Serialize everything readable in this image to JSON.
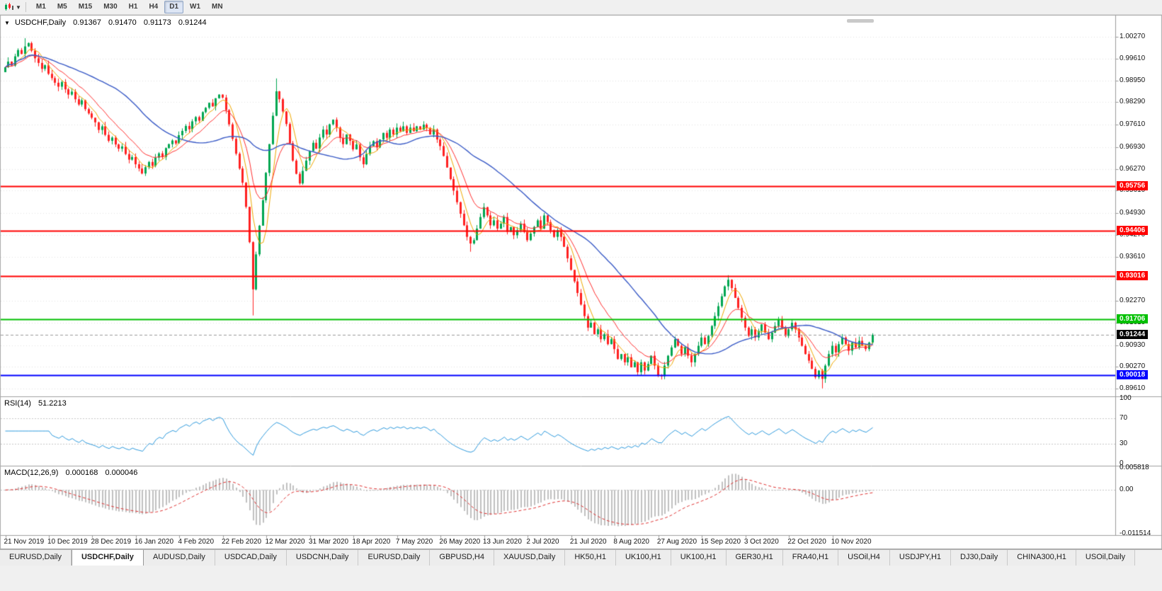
{
  "toolbar": {
    "timeframes": [
      {
        "label": "M1"
      },
      {
        "label": "M5"
      },
      {
        "label": "M15"
      },
      {
        "label": "M30"
      },
      {
        "label": "H1"
      },
      {
        "label": "H4"
      },
      {
        "label": "D1",
        "active": true
      },
      {
        "label": "W1"
      },
      {
        "label": "MN"
      }
    ]
  },
  "chart": {
    "collapse_arrow": "▼",
    "symbol_title": "USDCHF,Daily",
    "ohlc": {
      "open": "0.91367",
      "high": "0.91470",
      "low": "0.91173",
      "close": "0.91244"
    }
  },
  "indicators": {
    "rsi": {
      "label": "RSI(14)",
      "value": "51.2213",
      "axis": [
        "100",
        "70",
        "30",
        "0"
      ],
      "color": "#2f9bde"
    },
    "macd": {
      "label": "MACD(12,26,9)",
      "value_main": "0.000168",
      "value_signal": "0.000046",
      "axis": [
        "0.005818",
        "0.00",
        "-0.011514"
      ],
      "histogram_color": "#c0c0c0",
      "signal_color": "#e03030"
    }
  },
  "tabs": [
    {
      "label": "EURUSD,Daily"
    },
    {
      "label": "USDCHF,Daily",
      "active": true
    },
    {
      "label": "AUDUSD,Daily"
    },
    {
      "label": "USDCAD,Daily"
    },
    {
      "label": "USDCNH,Daily"
    },
    {
      "label": "EURUSD,Daily"
    },
    {
      "label": "GBPUSD,H4"
    },
    {
      "label": "XAUUSD,Daily"
    },
    {
      "label": "HK50,H1"
    },
    {
      "label": "UK100,H1"
    },
    {
      "label": "UK100,H1"
    },
    {
      "label": "GER30,H1"
    },
    {
      "label": "FRA40,H1"
    },
    {
      "label": "USOil,H4"
    },
    {
      "label": "USDJPY,H1"
    },
    {
      "label": "DJ30,Daily"
    },
    {
      "label": "CHINA300,H1"
    },
    {
      "label": "USOil,Daily"
    }
  ],
  "chart_data": {
    "type": "candlestick",
    "symbol": "USDCHF",
    "timeframe": "Daily",
    "title": "USDCHF,Daily",
    "ohlc_display": {
      "open": 0.91367,
      "high": 0.9147,
      "low": 0.91173,
      "close": 0.91244
    },
    "x_labels": [
      "21 Nov 2019",
      "10 Dec 2019",
      "28 Dec 2019",
      "16 Jan 2020",
      "4 Feb 2020",
      "22 Feb 2020",
      "12 Mar 2020",
      "31 Mar 2020",
      "18 Apr 2020",
      "7 May 2020",
      "26 May 2020",
      "13 Jun 2020",
      "2 Jul 2020",
      "21 Jul 2020",
      "8 Aug 2020",
      "27 Aug 2020",
      "15 Sep 2020",
      "3 Oct 2020",
      "22 Oct 2020",
      "10 Nov 2020"
    ],
    "y_axis_labels": [
      "1.00270",
      "0.99610",
      "0.98950",
      "0.98290",
      "0.97610",
      "0.96930",
      "0.96270",
      "0.95610",
      "0.94930",
      "0.94270",
      "0.93610",
      "0.92930",
      "0.92270",
      "0.91610",
      "0.90930",
      "0.90270",
      "0.89610"
    ],
    "price_range": {
      "top": 1.0085,
      "bottom": 0.894
    },
    "closes": [
      0.9935,
      0.9952,
      0.994,
      0.9968,
      0.9987,
      0.9975,
      0.9998,
      1.0008,
      0.9985,
      0.9962,
      0.9948,
      0.993,
      0.9941,
      0.9915,
      0.9902,
      0.9888,
      0.9876,
      0.989,
      0.9868,
      0.9852,
      0.9861,
      0.9838,
      0.9822,
      0.9835,
      0.9808,
      0.9795,
      0.9782,
      0.9768,
      0.9745,
      0.9756,
      0.973,
      0.9712,
      0.9722,
      0.9701,
      0.9688,
      0.9695,
      0.9672,
      0.9655,
      0.9663,
      0.9641,
      0.9628,
      0.9613,
      0.9632,
      0.9648,
      0.9636,
      0.9661,
      0.9674,
      0.9663,
      0.969,
      0.9702,
      0.9713,
      0.9704,
      0.9729,
      0.9742,
      0.9757,
      0.9747,
      0.9771,
      0.9784,
      0.9773,
      0.9799,
      0.9812,
      0.9827,
      0.9816,
      0.9841,
      0.9852,
      0.9843,
      0.9805,
      0.9762,
      0.9718,
      0.9673,
      0.9628,
      0.9585,
      0.9512,
      0.9405,
      0.9262,
      0.9368,
      0.9455,
      0.9532,
      0.9615,
      0.9702,
      0.9788,
      0.9862,
      0.9838,
      0.9801,
      0.9763,
      0.9705,
      0.9652,
      0.9612,
      0.9583,
      0.9621,
      0.9652,
      0.9681,
      0.9706,
      0.9688,
      0.9722,
      0.9746,
      0.9731,
      0.9762,
      0.9776,
      0.9752,
      0.9721,
      0.9702,
      0.9731,
      0.9712,
      0.9686,
      0.9701,
      0.9662,
      0.9641,
      0.9672,
      0.9696,
      0.9711,
      0.9692,
      0.9716,
      0.9736,
      0.9721,
      0.9746,
      0.9731,
      0.9752,
      0.9741,
      0.9756,
      0.9736,
      0.9752,
      0.9741,
      0.9756,
      0.9746,
      0.9761,
      0.9751,
      0.9731,
      0.9746,
      0.9716,
      0.9696,
      0.9666,
      0.9631,
      0.9596,
      0.9561,
      0.9526,
      0.9491,
      0.9456,
      0.9421,
      0.9401,
      0.9411,
      0.9446,
      0.9481,
      0.9511,
      0.9486,
      0.9456,
      0.9471,
      0.9446,
      0.9461,
      0.9481,
      0.9436,
      0.9451,
      0.9426,
      0.9441,
      0.9461,
      0.9436,
      0.9411,
      0.9431,
      0.9451,
      0.9471,
      0.9446,
      0.9486,
      0.9466,
      0.9441,
      0.9421,
      0.9441,
      0.9421,
      0.9391,
      0.9356,
      0.9321,
      0.9286,
      0.9251,
      0.9216,
      0.9181,
      0.9146,
      0.9161,
      0.9126,
      0.9141,
      0.9111,
      0.9126,
      0.9096,
      0.9111,
      0.9081,
      0.9051,
      0.9066,
      0.9041,
      0.9056,
      0.9026,
      0.9041,
      0.9011,
      0.9041,
      0.9016,
      0.9036,
      0.9061,
      0.9031,
      0.9001,
      0.8999,
      0.9031,
      0.9061,
      0.9086,
      0.9111,
      0.9091,
      0.9066,
      0.9086,
      0.9061,
      0.9041,
      0.9066,
      0.9091,
      0.9116,
      0.9096,
      0.9121,
      0.9151,
      0.9181,
      0.9211,
      0.9241,
      0.9271,
      0.9291,
      0.9266,
      0.9236,
      0.9206,
      0.9176,
      0.9146,
      0.9121,
      0.9141,
      0.9116,
      0.9136,
      0.9156,
      0.9131,
      0.9111,
      0.9131,
      0.9151,
      0.9171,
      0.9146,
      0.9121,
      0.9141,
      0.9161,
      0.9141,
      0.9116,
      0.9091,
      0.9066,
      0.9046,
      0.9021,
      0.8996,
      0.9016,
      0.8991,
      0.9031,
      0.9066,
      0.9091,
      0.9071,
      0.9096,
      0.9116,
      0.9096,
      0.9076,
      0.9101,
      0.9086,
      0.9106,
      0.9091,
      0.9081,
      0.9101,
      0.91244
    ],
    "wick_extremes": {
      "6": {
        "high": 1.0023
      },
      "74": {
        "low": 0.9183
      },
      "81": {
        "high": 0.9901
      },
      "139": {
        "low": 0.9376
      },
      "196": {
        "low": 0.8989
      },
      "244": {
        "low": 0.8962
      }
    },
    "levels": [
      {
        "price": 0.95756,
        "label": "0.95756",
        "color": "#ff0000"
      },
      {
        "price": 0.94406,
        "label": "0.94406",
        "color": "#ff0000"
      },
      {
        "price": 0.93016,
        "label": "0.93016",
        "color": "#ff0000"
      },
      {
        "price": 0.91706,
        "label": "0.91706",
        "color": "#00c000"
      },
      {
        "price": 0.90018,
        "label": "0.90018",
        "color": "#0000ff"
      }
    ],
    "current_price": {
      "value": 0.91244,
      "label": "0.91244",
      "tag_color": "#000000"
    },
    "moving_averages": [
      {
        "type": "sma",
        "period": 5,
        "color": "#f0a800"
      },
      {
        "type": "ema",
        "period": 12,
        "color": "#ff2f2f"
      },
      {
        "type": "sma",
        "period": 34,
        "color": "#3a5bc7"
      }
    ],
    "rsi": {
      "period": 14,
      "last": 51.2213
    },
    "macd": {
      "fast": 12,
      "slow": 26,
      "signal": 9,
      "last_main": 0.000168,
      "last_signal": 4.6e-05,
      "axis_max": 0.005818,
      "axis_min": -0.011514
    },
    "colors": {
      "up": "#00a651",
      "down": "#ff2121",
      "grid": "#e4e4e4",
      "axis_line": "#9a9a9a",
      "separator": "#a0a0a0",
      "current_price_line": "#9a9a9a"
    }
  }
}
